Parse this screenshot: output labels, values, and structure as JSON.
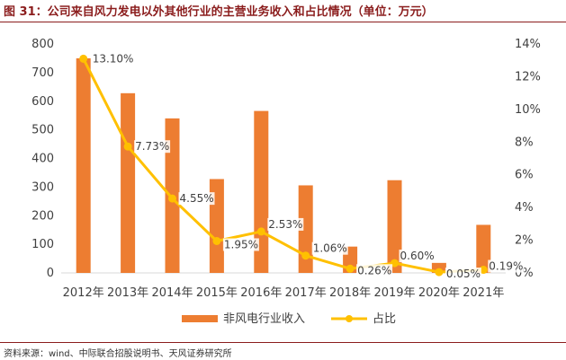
{
  "page": {
    "title": "图 31：公司来自风力发电以外其他行业的主营业务收入和占比情况（单位：万元）",
    "source": "资料来源：wind、中际联合招股说明书、天风证券研究所"
  },
  "chart_data": {
    "type": "bar",
    "categories": [
      "2012年",
      "2013年",
      "2014年",
      "2015年",
      "2016年",
      "2017年",
      "2018年",
      "2019年",
      "2020年",
      "2021年"
    ],
    "series": [
      {
        "name": "非风电行业收入",
        "type": "bar",
        "axis": "left",
        "color": "#ed7d31",
        "values": [
          750,
          628,
          540,
          328,
          566,
          306,
          92,
          324,
          35,
          168
        ]
      },
      {
        "name": "占比",
        "type": "line",
        "axis": "right",
        "color": "#ffc000",
        "values": [
          13.1,
          7.73,
          4.55,
          1.95,
          2.53,
          1.06,
          0.26,
          0.6,
          0.05,
          0.19
        ],
        "labels": [
          "13.10%",
          "7.73%",
          "4.55%",
          "1.95%",
          "2.53%",
          "1.06%",
          "0.26%",
          "0.60%",
          "0.05%",
          "0.19%"
        ]
      }
    ],
    "y_left": {
      "ylim": [
        0,
        800
      ],
      "ticks": [
        "0",
        "100",
        "200",
        "300",
        "400",
        "500",
        "600",
        "700",
        "800"
      ]
    },
    "y_right": {
      "ylim": [
        0,
        14
      ],
      "ticks": [
        "0%",
        "2%",
        "4%",
        "6%",
        "8%",
        "10%",
        "12%",
        "14%"
      ]
    },
    "legend_placement": "bottom-center",
    "grid": false
  }
}
